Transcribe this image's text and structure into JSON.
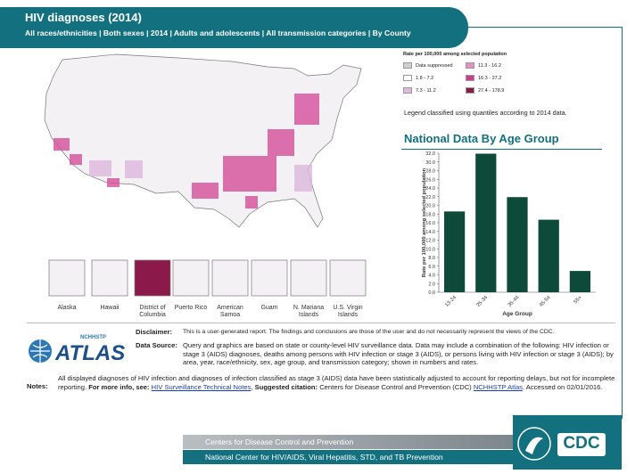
{
  "header": {
    "title": "HIV diagnoses (2014)",
    "subtitle": "All races/ethnicities | Both sexes | 2014 | Adults and adolescents | All transmission categories | By County"
  },
  "map_legend": {
    "title": "Rate per 100,000 among selected population",
    "items": [
      {
        "label": "Data suppressed",
        "color": "#cfcfcf"
      },
      {
        "label": "11.3 - 16.2",
        "color": "#e58fc4"
      },
      {
        "label": "1.8 - 7.2",
        "color": "#ffffff"
      },
      {
        "label": "16.3 - 27.2",
        "color": "#cc3d8f"
      },
      {
        "label": "7.3 - 11.2",
        "color": "#dcb8dc"
      },
      {
        "label": "27.4 - 178.9",
        "color": "#8b1a4a"
      }
    ],
    "note": "Legend classified using quantiles according to 2014 data."
  },
  "territories": [
    "Alaska",
    "Hawaii",
    "District of Columbia",
    "Puerto Rico",
    "American Samoa",
    "Guam",
    "N. Mariana Islands",
    "U.S. Virgin Islands"
  ],
  "chart_data": {
    "type": "bar",
    "title": "National Data By Age Group",
    "x_label": "Age Group",
    "y_label": "Rate per 100,000 among selected population",
    "categories": [
      "13-24",
      "25-34",
      "35-44",
      "45-54",
      "55+"
    ],
    "values": [
      18.6,
      31.9,
      21.9,
      16.7,
      4.9
    ],
    "color": "#0d4a3a",
    "ylim": [
      0,
      32
    ],
    "yticks": [
      {
        "value": 0,
        "label": "0.0"
      },
      {
        "value": 2,
        "label": "2.0"
      },
      {
        "value": 4,
        "label": "4.0"
      },
      {
        "value": 6,
        "label": "6.0"
      },
      {
        "value": 8,
        "label": "8.0"
      },
      {
        "value": 10,
        "label": "10.0"
      },
      {
        "value": 12,
        "label": "12.0"
      },
      {
        "value": 14,
        "label": "14.0"
      },
      {
        "value": 16,
        "label": "16.0"
      },
      {
        "value": 18,
        "label": "18.0"
      },
      {
        "value": 20,
        "label": "20.0"
      },
      {
        "value": 22,
        "label": "22.0"
      },
      {
        "value": 24,
        "label": "24.0"
      },
      {
        "value": 26,
        "label": "26.0"
      },
      {
        "value": 28,
        "label": "28.0"
      },
      {
        "value": 30,
        "label": "30.0"
      },
      {
        "value": 32,
        "label": "32.0"
      }
    ],
    "grid": false
  },
  "disclaimer": {
    "label": "Disclaimer:",
    "text": "This is a user-generated report. The findings and conclusions are those of the user and do not necessarily represent the views of the CDC."
  },
  "data_source": {
    "label": "Data Source:",
    "text": "Query and graphics are based on state or county-level HIV surveillance data. Data may include a combination of the following: HIV infection or stage 3 (AIDS) diagnoses, deaths among persons with HIV infection or stage 3 (AIDS), or persons living with HIV infection or stage 3 (AIDS); by area, year, race/ethnicity, sex, age group, and transmission category; shown in numbers and rates."
  },
  "notes": {
    "label": "Notes:",
    "segments": [
      {
        "text": "All displayed diagnoses of HIV infection and diagnoses of infection classified as stage 3 (AIDS) data have been statistically adjusted to account for reporting delays, but not for incomplete reporting. ",
        "style": "plain"
      },
      {
        "text": "For more info, see: ",
        "style": "bold"
      },
      {
        "text": "HIV Surveillance Technical Notes",
        "style": "link"
      },
      {
        "text": ", ",
        "style": "plain"
      },
      {
        "text": "Suggested citation: ",
        "style": "bold"
      },
      {
        "text": "Centers for Disease Control and Prevention (CDC) ",
        "style": "plain"
      },
      {
        "text": "NCHHSTP Atlas",
        "style": "link"
      },
      {
        "text": ". Accessed on 02/01/2016.",
        "style": "plain"
      }
    ]
  },
  "logos": {
    "atlas_small": "NCHHSTP",
    "atlas": "ATLAS",
    "cdc": "CDC"
  },
  "footer": {
    "line1": "Centers for Disease Control and Prevention",
    "line2": "National Center for HIV/AIDS, Viral Hepatitis, STD, and TB Prevention"
  }
}
